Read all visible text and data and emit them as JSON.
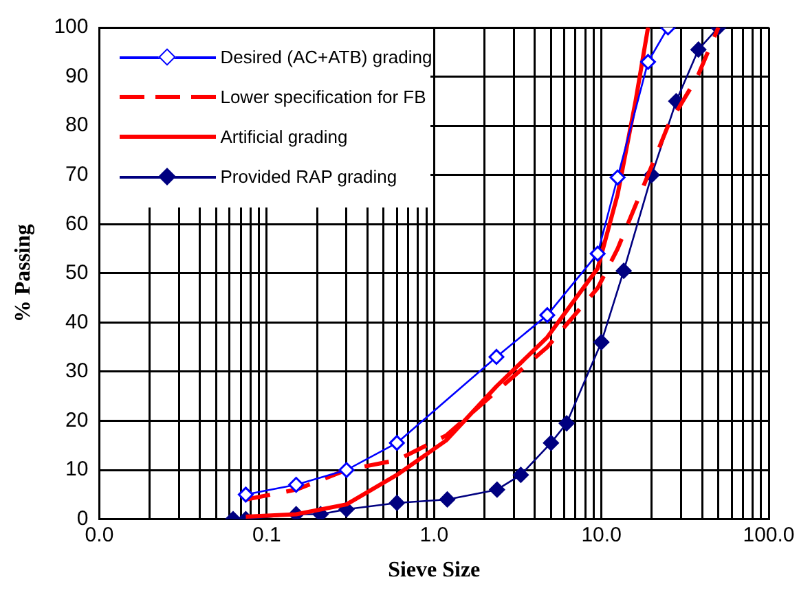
{
  "chart_data": {
    "type": "line",
    "xlabel": "Sieve Size",
    "ylabel": "% Passing",
    "log": "x",
    "grid": true,
    "legend": "top left",
    "xlim": [
      0.01,
      100
    ],
    "ylim": [
      0,
      100
    ],
    "xticks": [
      {
        "value": 0.01,
        "label": "0.0"
      },
      {
        "value": 0.02,
        "label": null
      },
      {
        "value": 0.03,
        "label": null
      },
      {
        "value": 0.04,
        "label": null
      },
      {
        "value": 0.05,
        "label": null
      },
      {
        "value": 0.06,
        "label": null
      },
      {
        "value": 0.07,
        "label": null
      },
      {
        "value": 0.08,
        "label": null
      },
      {
        "value": 0.09,
        "label": null
      },
      {
        "value": 0.1,
        "label": "0.1"
      },
      {
        "value": 0.2,
        "label": null
      },
      {
        "value": 0.3,
        "label": null
      },
      {
        "value": 0.4,
        "label": null
      },
      {
        "value": 0.5,
        "label": null
      },
      {
        "value": 0.6,
        "label": null
      },
      {
        "value": 0.7,
        "label": null
      },
      {
        "value": 0.8,
        "label": null
      },
      {
        "value": 0.9,
        "label": null
      },
      {
        "value": 1,
        "label": "1.0"
      },
      {
        "value": 2,
        "label": null
      },
      {
        "value": 3,
        "label": null
      },
      {
        "value": 4,
        "label": null
      },
      {
        "value": 5,
        "label": null
      },
      {
        "value": 6,
        "label": null
      },
      {
        "value": 7,
        "label": null
      },
      {
        "value": 8,
        "label": null
      },
      {
        "value": 9,
        "label": null
      },
      {
        "value": 10,
        "label": "10.0"
      },
      {
        "value": 20,
        "label": null
      },
      {
        "value": 30,
        "label": null
      },
      {
        "value": 40,
        "label": null
      },
      {
        "value": 50,
        "label": null
      },
      {
        "value": 60,
        "label": null
      },
      {
        "value": 70,
        "label": null
      },
      {
        "value": 80,
        "label": null
      },
      {
        "value": 90,
        "label": null
      },
      {
        "value": 100,
        "label": "100.0"
      }
    ],
    "yticks": [
      0,
      10,
      20,
      30,
      40,
      50,
      60,
      70,
      80,
      90,
      100
    ],
    "series": [
      {
        "name": "Desired (AC+ATB) grading",
        "color": "#0000ff",
        "marker": "diamond",
        "line_style": "solid",
        "x": [
          0.075,
          0.15,
          0.3,
          0.6,
          2.36,
          4.75,
          9.5,
          12.5,
          19,
          25
        ],
        "values": [
          5,
          7,
          10,
          15.5,
          33,
          41.5,
          54,
          69.5,
          93,
          100
        ]
      },
      {
        "name": "Lower specification for FB",
        "color": "#ff0000",
        "marker": "none",
        "line_style": "dashed",
        "x": [
          0.075,
          0.15,
          0.3,
          0.6,
          1.18,
          2.36,
          4.75,
          9.5,
          12.5,
          19,
          25,
          37.5,
          50
        ],
        "values": [
          4,
          6,
          10,
          12,
          17,
          26,
          35,
          47,
          55,
          70,
          80,
          90,
          100
        ]
      },
      {
        "name": "Artificial grading",
        "color": "#ff0000",
        "marker": "none",
        "line_style": "solid",
        "x": [
          0.075,
          0.15,
          0.3,
          0.6,
          1.18,
          2.36,
          4.75,
          9.5,
          12.5,
          16,
          19
        ],
        "values": [
          0.5,
          1,
          3,
          9,
          16,
          27,
          37,
          51,
          66,
          85,
          100
        ]
      },
      {
        "name": "Provided RAP grading",
        "color": "#000080",
        "marker": "diamond",
        "line_style": "solid",
        "x": [
          0.063,
          0.075,
          0.15,
          0.21,
          0.3,
          0.6,
          1.2,
          2.38,
          3.3,
          5,
          6.2,
          10,
          13.6,
          20,
          28,
          38,
          50
        ],
        "values": [
          0,
          0,
          1,
          1,
          2,
          3.3,
          4,
          6,
          9,
          15.5,
          19.5,
          36,
          50.5,
          70,
          85,
          95.5,
          100
        ]
      }
    ]
  }
}
